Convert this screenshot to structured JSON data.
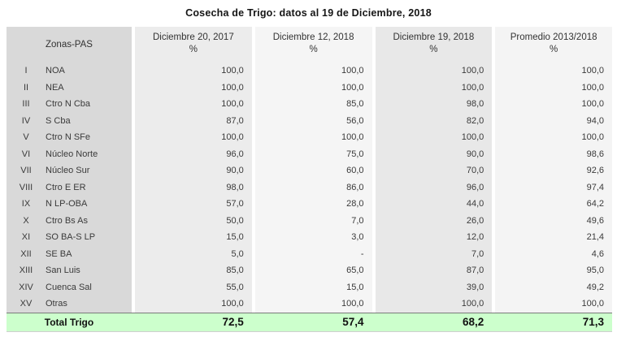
{
  "title": "Cosecha de Trigo: datos al 19 de Diciembre, 2018",
  "chart_data": {
    "type": "table",
    "title": "Cosecha de Trigo: datos al 19 de Diciembre, 2018",
    "row_header": "Zonas-PAS",
    "unit": "%",
    "columns": [
      "Diciembre 20, 2017",
      "Diciembre 12, 2018",
      "Diciembre 19, 2018",
      "Promedio 2013/2018"
    ],
    "rows": [
      {
        "numeral": "I",
        "zone": "NOA",
        "values": [
          "100,0",
          "100,0",
          "100,0",
          "100,0"
        ]
      },
      {
        "numeral": "II",
        "zone": "NEA",
        "values": [
          "100,0",
          "100,0",
          "100,0",
          "100,0"
        ]
      },
      {
        "numeral": "III",
        "zone": "Ctro N Cba",
        "values": [
          "100,0",
          "85,0",
          "98,0",
          "100,0"
        ]
      },
      {
        "numeral": "IV",
        "zone": "S Cba",
        "values": [
          "87,0",
          "56,0",
          "82,0",
          "94,0"
        ]
      },
      {
        "numeral": "V",
        "zone": "Ctro N SFe",
        "values": [
          "100,0",
          "100,0",
          "100,0",
          "100,0"
        ]
      },
      {
        "numeral": "VI",
        "zone": "Núcleo Norte",
        "values": [
          "96,0",
          "75,0",
          "90,0",
          "98,6"
        ]
      },
      {
        "numeral": "VII",
        "zone": "Núcleo Sur",
        "values": [
          "90,0",
          "60,0",
          "70,0",
          "92,6"
        ]
      },
      {
        "numeral": "VIII",
        "zone": "Ctro E ER",
        "values": [
          "98,0",
          "86,0",
          "96,0",
          "97,4"
        ]
      },
      {
        "numeral": "IX",
        "zone": "N LP-OBA",
        "values": [
          "57,0",
          "28,0",
          "44,0",
          "64,2"
        ]
      },
      {
        "numeral": "X",
        "zone": "Ctro Bs As",
        "values": [
          "50,0",
          "7,0",
          "26,0",
          "49,6"
        ]
      },
      {
        "numeral": "XI",
        "zone": "SO BA-S LP",
        "values": [
          "15,0",
          "3,0",
          "12,0",
          "21,4"
        ]
      },
      {
        "numeral": "XII",
        "zone": "SE BA",
        "values": [
          "5,0",
          "-",
          "7,0",
          "4,6"
        ]
      },
      {
        "numeral": "XIII",
        "zone": "San Luis",
        "values": [
          "85,0",
          "65,0",
          "87,0",
          "95,0"
        ]
      },
      {
        "numeral": "XIV",
        "zone": "Cuenca Sal",
        "values": [
          "55,0",
          "15,0",
          "39,0",
          "49,2"
        ]
      },
      {
        "numeral": "XV",
        "zone": "Otras",
        "values": [
          "100,0",
          "100,0",
          "100,0",
          "100,0"
        ]
      }
    ],
    "total": {
      "label": "Total Trigo",
      "values": [
        "72,5",
        "57,4",
        "68,2",
        "71,3"
      ]
    }
  },
  "colors": {
    "zone_column_bg": "#d9d9d9",
    "column_odd_bg": "#ececec",
    "column_even_bg": "#f5f5f5",
    "total_row_bg": "#ccffcc"
  }
}
